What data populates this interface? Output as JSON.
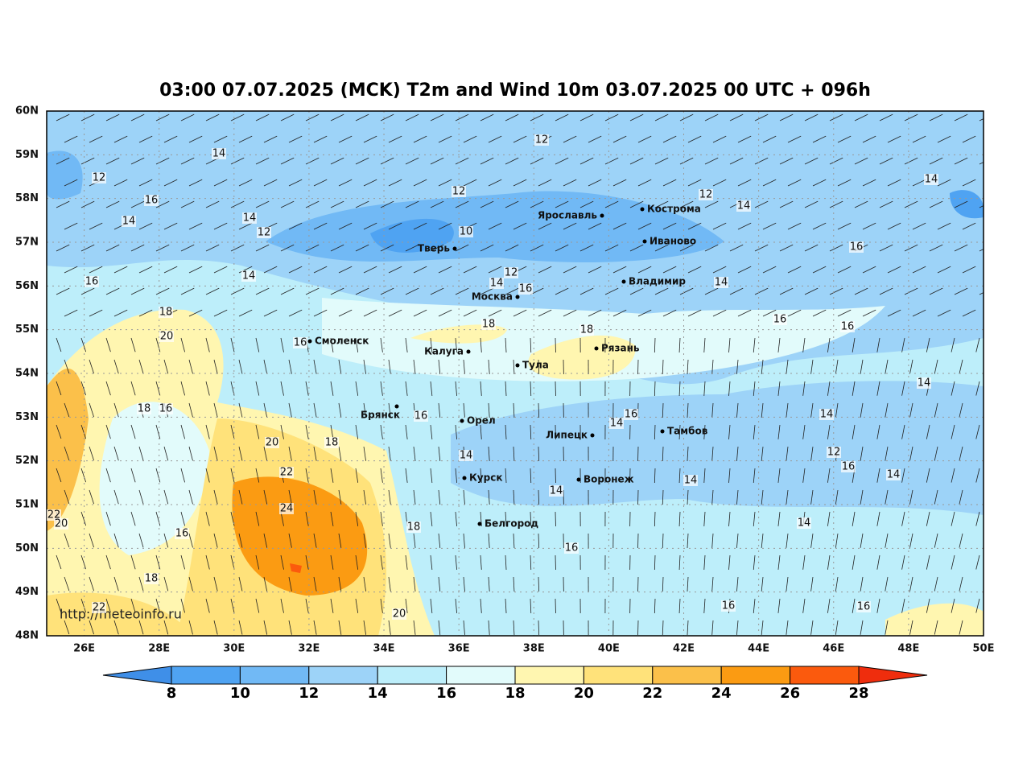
{
  "title": "03:00 07.07.2025 (MCK) T2m and Wind 10m 03.07.2025 00 UTC + 096h",
  "lat_labels": [
    "60N",
    "59N",
    "58N",
    "57N",
    "56N",
    "55N",
    "54N",
    "53N",
    "52N",
    "51N",
    "50N",
    "49N",
    "48N"
  ],
  "lon_labels": [
    "26E",
    "28E",
    "30E",
    "32E",
    "34E",
    "36E",
    "38E",
    "40E",
    "42E",
    "44E",
    "46E",
    "48E",
    "50E"
  ],
  "cities": [
    "Ярославль",
    "Кострома",
    "Иваново",
    "Тверь",
    "Владимир",
    "Москва",
    "Смоленск",
    "Калуга",
    "Рязань",
    "Тула",
    "Брянск",
    "Орел",
    "Липецк",
    "Тамбов",
    "Курск",
    "Воронеж",
    "Белгород"
  ],
  "contour_labels": [
    14,
    12,
    12,
    16,
    12,
    12,
    14,
    14,
    14,
    12,
    10,
    16,
    14,
    12,
    14,
    14,
    16,
    16,
    14,
    18,
    20,
    18,
    18,
    16,
    16,
    16,
    14,
    18,
    16,
    16,
    16,
    14,
    14,
    20,
    18,
    14,
    12,
    22,
    16,
    14,
    14,
    14,
    24,
    22,
    20,
    18,
    14,
    16,
    16,
    18,
    16,
    22,
    20,
    16
  ],
  "url": "http://meteoinfo.ru",
  "colorbar": {
    "ticks": [
      8,
      10,
      12,
      14,
      16,
      18,
      20,
      22,
      24,
      26,
      28
    ],
    "colors": [
      "#3f8fe8",
      "#4fa3f2",
      "#71b9f5",
      "#9dd3f8",
      "#bdeefa",
      "#e2fbfb",
      "#fff6b0",
      "#ffe27a",
      "#fbc04a",
      "#fb9b12",
      "#fb5a0d",
      "#ef2d0d"
    ]
  }
}
